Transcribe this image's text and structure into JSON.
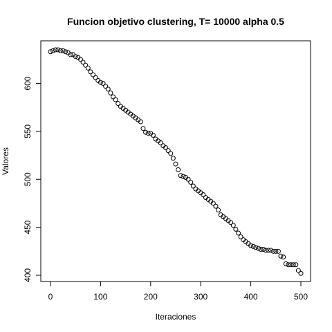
{
  "chart_data": {
    "type": "scatter",
    "title": "Funcion objetivo clustering, T= 10000 alpha 0.5",
    "xlabel": "Iteraciones",
    "ylabel": "Valores",
    "xlim": [
      0,
      500
    ],
    "ylim": [
      400,
      635
    ],
    "xticks": [
      0,
      100,
      200,
      300,
      400,
      500
    ],
    "yticks": [
      400,
      450,
      500,
      550,
      600
    ],
    "grid": false,
    "legend": "none",
    "marker": "open-circle",
    "colors": {
      "points": "#000000",
      "axes": "#000000",
      "background": "#ffffff"
    },
    "series": [
      {
        "x": [
          0,
          5,
          10,
          15,
          20,
          25,
          30,
          35,
          40,
          45,
          50,
          55,
          60,
          65,
          70,
          75,
          80,
          85,
          90,
          95,
          100,
          105,
          110,
          115,
          120,
          125,
          130,
          135,
          140,
          145,
          150,
          155,
          160,
          165,
          170,
          175,
          180,
          185,
          190,
          195,
          200,
          205,
          210,
          215,
          220,
          225,
          230,
          235,
          240,
          245,
          250,
          255,
          260,
          265,
          270,
          275,
          280,
          285,
          290,
          295,
          300,
          305,
          310,
          315,
          320,
          325,
          330,
          335,
          340,
          345,
          350,
          355,
          360,
          365,
          370,
          375,
          380,
          385,
          390,
          395,
          400,
          405,
          410,
          415,
          420,
          425,
          430,
          435,
          440,
          445,
          450,
          455,
          460,
          465,
          470,
          475,
          480,
          485,
          490,
          495,
          500
        ],
        "y": [
          633,
          634,
          635,
          635,
          634,
          634,
          633,
          632,
          630,
          630,
          628,
          627,
          625,
          622,
          619,
          616,
          612,
          609,
          606,
          603,
          601,
          600,
          597,
          594,
          590,
          586,
          583,
          579,
          576,
          574,
          572,
          570,
          568,
          566,
          564,
          562,
          560,
          553,
          549,
          548,
          548,
          546,
          542,
          540,
          538,
          535,
          533,
          530,
          527,
          522,
          516,
          510,
          504,
          503,
          502,
          500,
          497,
          493,
          490,
          488,
          486,
          484,
          481,
          479,
          477,
          475,
          472,
          468,
          463,
          461,
          459,
          457,
          455,
          452,
          448,
          444,
          440,
          437,
          435,
          433,
          431,
          430,
          429,
          428,
          427,
          427,
          426,
          426,
          426,
          425,
          425,
          425,
          420,
          419,
          412,
          411,
          411,
          411,
          411,
          405,
          402
        ]
      }
    ]
  }
}
